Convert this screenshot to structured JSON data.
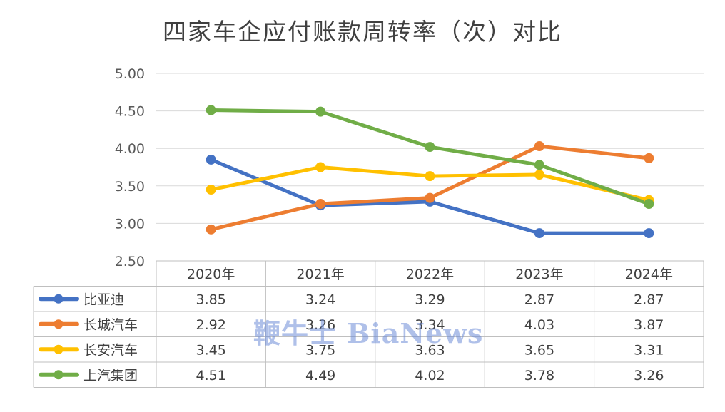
{
  "chart_data": {
    "type": "line",
    "title": "四家车企应付账款周转率（次）对比",
    "categories": [
      "2020年",
      "2021年",
      "2022年",
      "2023年",
      "2024年"
    ],
    "ylim": [
      2.5,
      5.0
    ],
    "yticks": [
      "2.50",
      "3.00",
      "3.50",
      "4.00",
      "4.50",
      "5.00"
    ],
    "grid": true,
    "legend": "data-table",
    "series": [
      {
        "name": "比亚迪",
        "color": "#4472c4",
        "values": [
          3.85,
          3.24,
          3.29,
          2.87,
          2.87
        ],
        "labels": [
          "3.85",
          "3.24",
          "3.29",
          "2.87",
          "2.87"
        ]
      },
      {
        "name": "长城汽车",
        "color": "#ed7d31",
        "values": [
          2.92,
          3.26,
          3.34,
          4.03,
          3.87
        ],
        "labels": [
          "2.92",
          "3.26",
          "3.34",
          "4.03",
          "3.87"
        ]
      },
      {
        "name": "长安汽车",
        "color": "#ffc000",
        "values": [
          3.45,
          3.75,
          3.63,
          3.65,
          3.31
        ],
        "labels": [
          "3.45",
          "3.75",
          "3.63",
          "3.65",
          "3.31"
        ]
      },
      {
        "name": "上汽集团",
        "color": "#70ad47",
        "values": [
          4.51,
          4.49,
          4.02,
          3.78,
          3.26
        ],
        "labels": [
          "4.51",
          "4.49",
          "4.02",
          "3.78",
          "3.26"
        ]
      }
    ]
  },
  "watermark": "鞭牛士 BiaNews"
}
